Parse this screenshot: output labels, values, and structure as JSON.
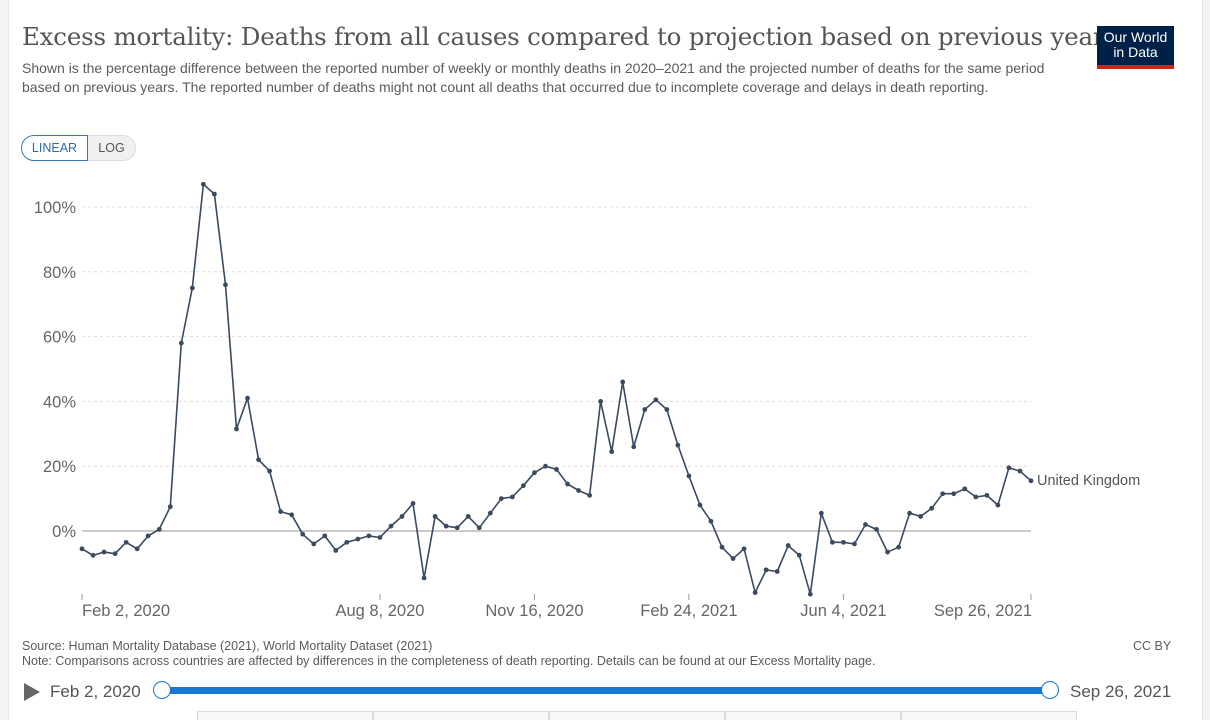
{
  "header": {
    "title": "Excess mortality: Deaths from all causes compared to projection based on previous years",
    "subtitle": "Shown is the percentage difference between the reported number of weekly or monthly deaths in 2020–2021 and the projected number of deaths for the same period based on previous years. The reported number of deaths might not count all deaths that occurred due to incomplete coverage and delays in death reporting.",
    "logo_line1": "Our World",
    "logo_line2": "in Data"
  },
  "controls": {
    "linear_label": "LINEAR",
    "log_label": "LOG"
  },
  "colors": {
    "series": "#3b4a5e",
    "grid": "#dddddd",
    "zero": "#aaaaaa",
    "timeline": "#1478d4"
  },
  "chart_data": {
    "type": "line",
    "title": "Excess mortality: Deaths from all causes compared to projection based on previous years",
    "xlabel": "",
    "ylabel": "",
    "ylim": [
      -20,
      110
    ],
    "yticks": [
      0,
      20,
      40,
      60,
      80,
      100
    ],
    "ytick_labels": [
      "0%",
      "20%",
      "40%",
      "60%",
      "80%",
      "100%"
    ],
    "xtick_labels": [
      "Feb 2, 2020",
      "Aug 8, 2020",
      "Nov 16, 2020",
      "Feb 24, 2021",
      "Jun 4, 2021",
      "Sep 26, 2021"
    ],
    "xtick_week_index": [
      0,
      27,
      41,
      55,
      69,
      86
    ],
    "grid": true,
    "series": [
      {
        "name": "United Kingdom",
        "label": "United Kingdom",
        "values": [
          -5.5,
          -7.5,
          -6.5,
          -7,
          -3.5,
          -5.5,
          -1.5,
          0.5,
          7.5,
          58,
          75,
          107,
          104,
          76,
          31.5,
          41,
          22,
          18.5,
          6,
          5,
          -1,
          -4,
          -1.5,
          -6,
          -3.5,
          -2.5,
          -1.5,
          -2,
          1.5,
          4.5,
          8.5,
          -14.5,
          4.5,
          1.5,
          1,
          4.5,
          1,
          5.5,
          10,
          10.5,
          14,
          18,
          20,
          19,
          14.5,
          12.5,
          11,
          40,
          24.5,
          46,
          26,
          37.5,
          40.5,
          37.5,
          26.5,
          17,
          8,
          3,
          -5,
          -8.5,
          -5.5,
          -19,
          -12,
          -12.5,
          -4.5,
          -7.5,
          -19.5,
          5.5,
          -3.5,
          -3.5,
          -4,
          2,
          0.5,
          -6.5,
          -5,
          5.5,
          4.5,
          7,
          11.5,
          11.5,
          13,
          10.5,
          11,
          8,
          19.5,
          18.5,
          15.5
        ]
      }
    ]
  },
  "footer": {
    "source": "Source: Human Mortality Database (2021), World Mortality Dataset (2021)",
    "note": "Note: Comparisons across countries are affected by differences in the completeness of death reporting. Details can be found at our Excess Mortality page.",
    "license": "CC BY"
  },
  "timeline": {
    "start_label": "Feb 2, 2020",
    "end_label": "Sep 26, 2021"
  }
}
